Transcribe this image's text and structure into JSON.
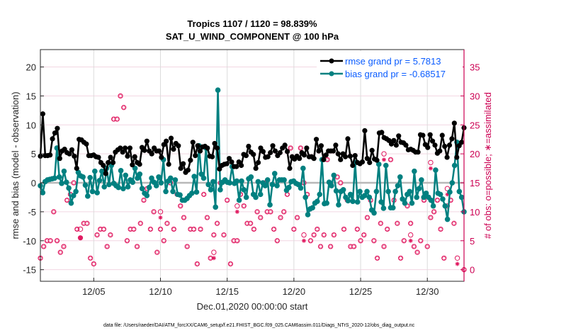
{
  "chart_data": {
    "type": "line",
    "title": [
      "Tropics 1107 / 1120 = 98.839%",
      "SAT_U_WIND_COMPONENT @ 100 hPa"
    ],
    "xlabel": "Dec.01,2020 00:00:00 start",
    "ylabel": "rmse and bias (model - observation)",
    "ylabel_right": "# of obs: o=possible; ∗=assimilated",
    "xlim_days": [
      0,
      31.75
    ],
    "ylim": [
      -17,
      23
    ],
    "ylim_right": [
      -2,
      38
    ],
    "yticks": [
      -15,
      -10,
      -5,
      0,
      5,
      10,
      15,
      20
    ],
    "yticks_right": [
      0,
      5,
      10,
      15,
      20,
      25,
      30,
      35
    ],
    "xticks": [
      {
        "day": 4,
        "label": "12/05"
      },
      {
        "day": 9,
        "label": "12/10"
      },
      {
        "day": 14,
        "label": "12/15"
      },
      {
        "day": 19,
        "label": "12/20"
      },
      {
        "day": 24,
        "label": "12/25"
      },
      {
        "day": 29,
        "label": "12/30"
      }
    ],
    "grid": true,
    "zero_line": true,
    "legend_position": "top-right",
    "legend": [
      {
        "label": "rmse grand pr = 5.7813",
        "color": "#000000"
      },
      {
        "label": "bias grand pr = -0.68517",
        "color": "#008080"
      }
    ],
    "x_step_days": 0.25,
    "series": [
      {
        "name": "rmse",
        "color": "#000000",
        "values": [
          4.6,
          11.9,
          4.7,
          4.7,
          4.8,
          7.6,
          8.6,
          9.4,
          4.2,
          5.5,
          5.8,
          5.2,
          5.0,
          5.7,
          4.6,
          2.5,
          7.5,
          7.4,
          7.0,
          6.7,
          4.7,
          4.7,
          4.8,
          4.5,
          4.4,
          3.5,
          3.0,
          1.6,
          3.5,
          4.4,
          3.5,
          5.3,
          5.7,
          6.0,
          5.3,
          6.0,
          4.6,
          6.0,
          3.1,
          4.5,
          3.5,
          3.2,
          6.1,
          5.6,
          7.2,
          5.5,
          5.0,
          6.0,
          5.5,
          5.5,
          4.4,
          6.6,
          7.2,
          3.2,
          7.7,
          5.8,
          6.8,
          6.4,
          2.5,
          3.3,
          1.8,
          2.2,
          3.9,
          7.0,
          4.7,
          6.4,
          5.5,
          6.2,
          6.3,
          6.0,
          4.6,
          4.5,
          6.8,
          6.0,
          2.4,
          3.0,
          3.2,
          3.3,
          4.2,
          3.6,
          2.8,
          2.8,
          3.6,
          3.0,
          4.9,
          4.7,
          6.3,
          5.3,
          4.9,
          2.5,
          3.5,
          6.0,
          5.4,
          4.4,
          4.5,
          5.2,
          6.4,
          5.5,
          4.7,
          5.2,
          6.0,
          6.5,
          5.4,
          2.5,
          4.5,
          4.1,
          4.6,
          4.2,
          5.2,
          4.8,
          6.0,
          4.5,
          4.5,
          4.2,
          7.5,
          5.5,
          6.4,
          4.0,
          4.8,
          5.5,
          5.5,
          5.5,
          6.5,
          5.0,
          4.0,
          5.0,
          4.5,
          7.6,
          4.6,
          3.0,
          4.7,
          3.5,
          3.3,
          3.6,
          9.0,
          4.2,
          3.5,
          5.6,
          4.1,
          3.9,
          8.6,
          8.7,
          7.8,
          7.6,
          7.3,
          6.7,
          7.3,
          6.5,
          8.1,
          7.0,
          6.9,
          6.5,
          5.7,
          5.8,
          5.6,
          5.3,
          5.3,
          8.3,
          8.2,
          6.6,
          6.1,
          8.3,
          7.2,
          6.5,
          5.1,
          5.5,
          8.2,
          6.3,
          4.4,
          6.5,
          7.6,
          10.3,
          4.4,
          6.4,
          7.0,
          9.5
        ]
      },
      {
        "name": "bias",
        "color": "#008080",
        "values": [
          -0.5,
          -1.7,
          0.2,
          0.5,
          0.6,
          0.7,
          0.8,
          6.0,
          1.0,
          -0.1,
          2.0,
          0.1,
          -0.9,
          -3.5,
          -2.2,
          -1.5,
          1.8,
          1.2,
          1.0,
          -0.4,
          -2.3,
          0.9,
          -1.5,
          2.0,
          -1.7,
          0.4,
          2.0,
          -0.7,
          2.5,
          -0.3,
          3.0,
          -0.1,
          -0.5,
          -0.8,
          2.1,
          -1.0,
          1.3,
          -0.7,
          0.5,
          0.1,
          2.5,
          0.8,
          1.5,
          -1.0,
          -1.8,
          -2.2,
          -0.8,
          0.8,
          0.1,
          -0.5,
          1.0,
          0.0,
          4.0,
          -1.5,
          0.3,
          0.8,
          -1.5,
          0.5,
          -2.0,
          -2.1,
          -3.0,
          -3.0,
          -2.7,
          -2.2,
          -1.8,
          1.1,
          -1.6,
          6.4,
          1.5,
          0.8,
          6.0,
          -0.3,
          -1.2,
          0.2,
          -4.2,
          16.0,
          -1.2,
          0.1,
          0.5,
          0.1,
          0.0,
          2.8,
          -0.1,
          0.3,
          -3.0,
          0.3,
          -1.2,
          -2.5,
          0.7,
          1.0,
          -2.0,
          -2.5,
          0.2,
          -2.0,
          0.0,
          -0.5,
          0.5,
          -3.8,
          -0.3,
          1.6,
          -0.5,
          0.5,
          0.5,
          0.5,
          -1.3,
          -0.8,
          0.2,
          0.3,
          -0.1,
          -0.3,
          -0.9,
          2.5,
          -2.5,
          -5.5,
          -4.5,
          -4.3,
          -3.5,
          -3.2,
          -2.0,
          4.0,
          -3.6,
          -3.5,
          0.1,
          -0.5,
          1.3,
          -1.4,
          -3.8,
          -1.5,
          -1.2,
          -2.5,
          -3.1,
          -2.0,
          -3.2,
          3.5,
          -3.3,
          -1.5,
          -2.5,
          -2.2,
          -1.5,
          -2.5,
          -4.7,
          -5.2,
          -1.5,
          3.2,
          -3.3,
          -4.4,
          3.0,
          -1.5,
          -4.3,
          -4.3,
          -1.5,
          -0.5,
          1.0,
          -2.8,
          -3.5,
          -2.0,
          -1.5,
          -3.5,
          2.0,
          -2.5,
          -1.0,
          0.5,
          -2.5,
          -1.8,
          -2.5,
          -3.0,
          -4.0,
          2.2,
          -1.8,
          -2.0,
          -2.8,
          -4.0,
          -6.3,
          -1.6,
          0.0,
          3.0,
          7.0,
          -1.5,
          -2.5,
          -5.0
        ]
      }
    ],
    "obs_possible": [
      {
        "day": 0.0,
        "n": 2
      },
      {
        "day": 0.25,
        "n": 4
      },
      {
        "day": 0.5,
        "n": 5
      },
      {
        "day": 0.75,
        "n": 5
      },
      {
        "day": 1.0,
        "n": 10
      },
      {
        "day": 1.25,
        "n": 5
      },
      {
        "day": 1.5,
        "n": 3
      },
      {
        "day": 1.75,
        "n": 4
      },
      {
        "day": 2.0,
        "n": 12
      },
      {
        "day": 2.25,
        "n": 13
      },
      {
        "day": 2.5,
        "n": 15
      },
      {
        "day": 2.75,
        "n": 7
      },
      {
        "day": 3.0,
        "n": 5.5
      },
      {
        "day": 3.25,
        "n": 8
      },
      {
        "day": 3.5,
        "n": 8
      },
      {
        "day": 3.75,
        "n": 2
      },
      {
        "day": 4.0,
        "n": 1
      },
      {
        "day": 4.25,
        "n": 6
      },
      {
        "day": 4.5,
        "n": 7
      },
      {
        "day": 4.75,
        "n": 7
      },
      {
        "day": 5.0,
        "n": 4
      },
      {
        "day": 5.25,
        "n": 6
      },
      {
        "day": 5.5,
        "n": 26
      },
      {
        "day": 5.75,
        "n": 26
      },
      {
        "day": 6.0,
        "n": 30
      },
      {
        "day": 6.25,
        "n": 28
      },
      {
        "day": 6.5,
        "n": 5
      },
      {
        "day": 6.75,
        "n": 7
      },
      {
        "day": 7.0,
        "n": 7
      },
      {
        "day": 7.25,
        "n": 4
      },
      {
        "day": 7.5,
        "n": 8
      },
      {
        "day": 7.75,
        "n": 12
      },
      {
        "day": 8.0,
        "n": 14
      },
      {
        "day": 8.25,
        "n": 7
      },
      {
        "day": 8.5,
        "n": 10
      },
      {
        "day": 8.75,
        "n": 3
      },
      {
        "day": 9.0,
        "n": 7
      },
      {
        "day": 9.25,
        "n": 5
      },
      {
        "day": 9.5,
        "n": 8
      },
      {
        "day": 9.75,
        "n": 15
      },
      {
        "day": 10.0,
        "n": 7
      },
      {
        "day": 10.25,
        "n": 13
      },
      {
        "day": 10.5,
        "n": 11
      },
      {
        "day": 10.75,
        "n": 9
      },
      {
        "day": 11.0,
        "n": 4
      },
      {
        "day": 11.25,
        "n": 7
      },
      {
        "day": 11.5,
        "n": 7
      },
      {
        "day": 11.75,
        "n": 1
      },
      {
        "day": 12.0,
        "n": 7
      },
      {
        "day": 12.25,
        "n": 13
      },
      {
        "day": 12.5,
        "n": 9
      },
      {
        "day": 12.75,
        "n": 2
      },
      {
        "day": 13.0,
        "n": 6
      },
      {
        "day": 13.25,
        "n": 8
      },
      {
        "day": 13.5,
        "n": 15
      },
      {
        "day": 13.75,
        "n": 6
      },
      {
        "day": 14.0,
        "n": 12
      },
      {
        "day": 14.25,
        "n": 1
      },
      {
        "day": 14.5,
        "n": 5
      },
      {
        "day": 14.75,
        "n": 5
      },
      {
        "day": 15.0,
        "n": 13
      },
      {
        "day": 15.25,
        "n": 11
      },
      {
        "day": 15.5,
        "n": 8
      },
      {
        "day": 15.75,
        "n": 8
      },
      {
        "day": 16.0,
        "n": 7
      },
      {
        "day": 16.25,
        "n": 10
      },
      {
        "day": 16.5,
        "n": 9
      },
      {
        "day": 16.75,
        "n": 15
      },
      {
        "day": 17.0,
        "n": 10
      },
      {
        "day": 17.25,
        "n": 10
      },
      {
        "day": 17.5,
        "n": 7
      },
      {
        "day": 17.75,
        "n": 5
      },
      {
        "day": 18.0,
        "n": 9
      },
      {
        "day": 18.25,
        "n": 10
      },
      {
        "day": 18.5,
        "n": 13
      },
      {
        "day": 18.75,
        "n": 21
      },
      {
        "day": 19.0,
        "n": 7
      },
      {
        "day": 19.25,
        "n": 9
      },
      {
        "day": 19.5,
        "n": 21
      },
      {
        "day": 19.75,
        "n": 15
      },
      {
        "day": 20.0,
        "n": 13
      },
      {
        "day": 20.25,
        "n": 5
      },
      {
        "day": 20.5,
        "n": 6
      },
      {
        "day": 20.75,
        "n": 7
      },
      {
        "day": 21.0,
        "n": 4
      },
      {
        "day": 21.25,
        "n": 6
      },
      {
        "day": 21.5,
        "n": 19
      },
      {
        "day": 21.75,
        "n": 4
      },
      {
        "day": 22.0,
        "n": 6
      },
      {
        "day": 22.25,
        "n": 16
      },
      {
        "day": 22.5,
        "n": 15
      },
      {
        "day": 22.75,
        "n": 7
      },
      {
        "day": 23.0,
        "n": 12
      },
      {
        "day": 23.25,
        "n": 4
      },
      {
        "day": 23.5,
        "n": 4
      },
      {
        "day": 23.75,
        "n": 7
      },
      {
        "day": 24.0,
        "n": 5
      },
      {
        "day": 24.25,
        "n": 6
      },
      {
        "day": 24.5,
        "n": 9
      },
      {
        "day": 24.75,
        "n": 12
      },
      {
        "day": 25.0,
        "n": 5
      },
      {
        "day": 25.25,
        "n": 2
      },
      {
        "day": 25.5,
        "n": 8
      },
      {
        "day": 25.75,
        "n": 4
      },
      {
        "day": 26.0,
        "n": 7
      },
      {
        "day": 26.25,
        "n": 19
      },
      {
        "day": 26.5,
        "n": 12
      },
      {
        "day": 26.75,
        "n": 8
      },
      {
        "day": 27.0,
        "n": 2
      },
      {
        "day": 27.25,
        "n": 5
      },
      {
        "day": 27.5,
        "n": 11
      },
      {
        "day": 27.75,
        "n": 8
      },
      {
        "day": 28.0,
        "n": 4
      },
      {
        "day": 28.25,
        "n": 3
      },
      {
        "day": 28.5,
        "n": 5
      },
      {
        "day": 28.75,
        "n": 12
      },
      {
        "day": 29.0,
        "n": 4
      },
      {
        "day": 29.25,
        "n": 9
      },
      {
        "day": 29.5,
        "n": 10
      },
      {
        "day": 29.75,
        "n": 12
      },
      {
        "day": 30.0,
        "n": 7
      },
      {
        "day": 30.25,
        "n": 2
      },
      {
        "day": 30.5,
        "n": 11
      },
      {
        "day": 30.75,
        "n": 12
      },
      {
        "day": 31.0,
        "n": 8
      },
      {
        "day": 31.75,
        "n": 0
      }
    ],
    "obs_possible_only": [
      {
        "day": 3.0,
        "possible": 7,
        "assimilated": 5.5
      },
      {
        "day": 9.0,
        "possible": 10,
        "assimilated": 9
      },
      {
        "day": 13.0,
        "possible": 3,
        "assimilated": 2
      },
      {
        "day": 14.75,
        "possible": 11,
        "assimilated": 10
      },
      {
        "day": 19.75,
        "possible": 6,
        "assimilated": 5
      },
      {
        "day": 25.75,
        "possible": 20,
        "assimilated": 19
      },
      {
        "day": 27.75,
        "possible": 6,
        "assimilated": 5
      },
      {
        "day": 29.25,
        "possible": 18.5,
        "assimilated": 17.5
      },
      {
        "day": 30.5,
        "possible": 14,
        "assimilated": 13
      },
      {
        "day": 31.25,
        "possible": 2,
        "assimilated": 1
      }
    ]
  },
  "footer": {
    "data_file": "data file: /Users/raeder/DAI/ATM_forcXX/CAM6_setup/f.e21.FHIST_BGC.f09_025.CAM6assim.011/Diags_NTrS_2020-12/obs_diag_output.nc"
  }
}
